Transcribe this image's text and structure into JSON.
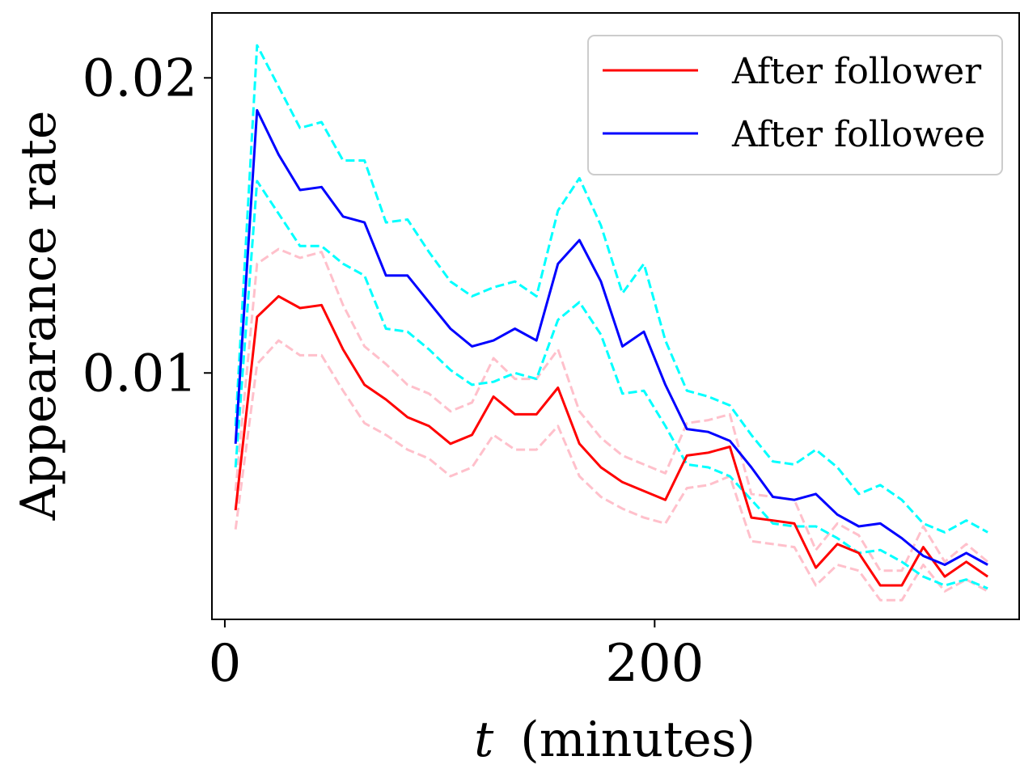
{
  "chart_data": {
    "type": "line",
    "xlabel_var": "t",
    "xlabel_unit": "(minutes)",
    "ylabel": "Appearance rate",
    "xlim": [
      -6,
      370
    ],
    "ylim": [
      0.00165,
      0.0222
    ],
    "xticks": [
      0,
      200
    ],
    "xtick_labels": [
      "0",
      "200"
    ],
    "yticks": [
      0.01,
      0.02
    ],
    "ytick_labels": [
      "0.01",
      "0.02"
    ],
    "grid": false,
    "legend_position": "top-right",
    "x": [
      5,
      15,
      25,
      35,
      45,
      55,
      65,
      75,
      85,
      95,
      105,
      115,
      125,
      135,
      145,
      155,
      165,
      175,
      185,
      195,
      205,
      215,
      225,
      235,
      245,
      255,
      265,
      275,
      285,
      295,
      305,
      315,
      325,
      335,
      345,
      355
    ],
    "series": [
      {
        "name": "After follower",
        "color": "#ff0000",
        "style": "solid",
        "values": [
          0.00535,
          0.0119,
          0.0126,
          0.0122,
          0.0123,
          0.0108,
          0.0096,
          0.0091,
          0.0085,
          0.0082,
          0.0076,
          0.0079,
          0.0092,
          0.0086,
          0.0086,
          0.0095,
          0.0076,
          0.0068,
          0.0063,
          0.006,
          0.0057,
          0.0072,
          0.0073,
          0.0075,
          0.0051,
          0.005,
          0.0049,
          0.0034,
          0.0042,
          0.0039,
          0.0028,
          0.0028,
          0.0041,
          0.0031,
          0.0036,
          0.0031
        ]
      },
      {
        "name": "After followee",
        "color": "#0000ff",
        "style": "solid",
        "values": [
          0.0076,
          0.0189,
          0.0174,
          0.0162,
          0.0163,
          0.0153,
          0.0151,
          0.0133,
          0.0133,
          0.0124,
          0.0115,
          0.0109,
          0.0111,
          0.0115,
          0.0111,
          0.0137,
          0.0145,
          0.0131,
          0.0109,
          0.0114,
          0.0096,
          0.0081,
          0.008,
          0.0077,
          0.0068,
          0.0058,
          0.0057,
          0.0059,
          0.0052,
          0.0048,
          0.0049,
          0.0044,
          0.0038,
          0.0035,
          0.0039,
          0.0035
        ]
      },
      {
        "color": "#ffc0cb",
        "style": "dashed",
        "values": [
          0.0047,
          0.0103,
          0.0111,
          0.0106,
          0.0106,
          0.0094,
          0.0083,
          0.0079,
          0.0074,
          0.0071,
          0.0065,
          0.0068,
          0.0079,
          0.0074,
          0.0074,
          0.0082,
          0.0065,
          0.0058,
          0.0054,
          0.0051,
          0.0049,
          0.0061,
          0.0062,
          0.0065,
          0.0043,
          0.0042,
          0.0041,
          0.0028,
          0.0035,
          0.0033,
          0.0023,
          0.0023,
          0.0035,
          0.0026,
          0.003,
          0.0026
        ]
      },
      {
        "color": "#ffc0cb",
        "style": "dashed",
        "values": [
          0.006,
          0.0137,
          0.0142,
          0.0139,
          0.0141,
          0.0123,
          0.0109,
          0.0103,
          0.0096,
          0.0093,
          0.0087,
          0.009,
          0.0105,
          0.0098,
          0.0098,
          0.0108,
          0.0087,
          0.0078,
          0.0072,
          0.0069,
          0.0066,
          0.0083,
          0.0084,
          0.0086,
          0.0059,
          0.0058,
          0.0057,
          0.004,
          0.0049,
          0.0045,
          0.0033,
          0.0033,
          0.0048,
          0.0036,
          0.0042,
          0.0036
        ]
      },
      {
        "color": "#00ffff",
        "style": "dashed",
        "values": [
          0.0068,
          0.0165,
          0.0154,
          0.0143,
          0.0143,
          0.0137,
          0.0133,
          0.0115,
          0.0114,
          0.0108,
          0.0101,
          0.0096,
          0.0097,
          0.01,
          0.0098,
          0.0118,
          0.0124,
          0.0113,
          0.0093,
          0.0094,
          0.0082,
          0.0069,
          0.0068,
          0.0065,
          0.0057,
          0.0049,
          0.0048,
          0.0048,
          0.0044,
          0.0039,
          0.004,
          0.0036,
          0.0031,
          0.0028,
          0.003,
          0.0027
        ]
      },
      {
        "color": "#00ffff",
        "style": "dashed",
        "values": [
          0.0082,
          0.0211,
          0.0197,
          0.0183,
          0.0185,
          0.0172,
          0.0172,
          0.0151,
          0.0152,
          0.0141,
          0.0131,
          0.0126,
          0.0129,
          0.0131,
          0.0126,
          0.0155,
          0.0166,
          0.015,
          0.0127,
          0.0137,
          0.0111,
          0.0094,
          0.0092,
          0.0089,
          0.0079,
          0.007,
          0.0069,
          0.0074,
          0.0068,
          0.0059,
          0.0062,
          0.0057,
          0.0049,
          0.0046,
          0.005,
          0.0046
        ]
      }
    ]
  }
}
